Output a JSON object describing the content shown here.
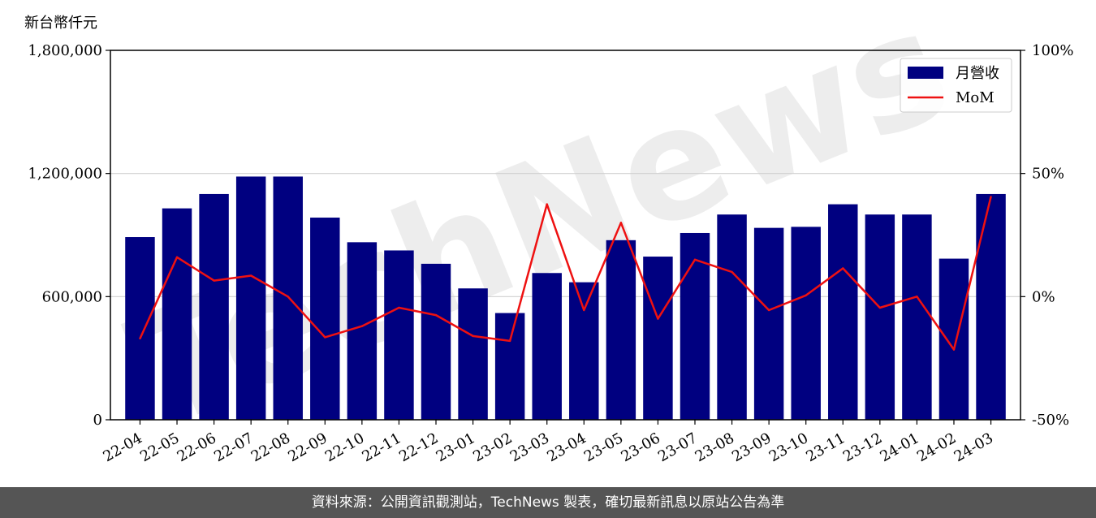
{
  "unit_label": "新台幣仟元",
  "footer_text": "資料來源：公開資訊觀測站，TechNews 製表，確切最新訊息以原站公告為準",
  "watermark_text": "TechNews",
  "colors": {
    "bar": "#000080",
    "line": "#ee1111",
    "grid": "#d0d0d0",
    "footer_bg": "#555555"
  },
  "chart_data": {
    "type": "bar",
    "categories": [
      "22-04",
      "22-05",
      "22-06",
      "22-07",
      "22-08",
      "22-09",
      "22-10",
      "22-11",
      "22-12",
      "23-01",
      "23-02",
      "23-03",
      "23-04",
      "23-05",
      "23-06",
      "23-07",
      "23-08",
      "23-09",
      "23-10",
      "23-11",
      "23-12",
      "24-01",
      "24-02",
      "24-03"
    ],
    "series": [
      {
        "name": "月營收",
        "type": "bar",
        "axis": "left",
        "values": [
          890000,
          1030000,
          1100000,
          1185000,
          1185000,
          985000,
          865000,
          825000,
          760000,
          640000,
          520000,
          715000,
          670000,
          875000,
          795000,
          910000,
          1000000,
          935000,
          940000,
          1050000,
          1000000,
          1000000,
          785000,
          1100000
        ]
      },
      {
        "name": "MoM",
        "type": "line",
        "axis": "right",
        "unit": "%",
        "values": [
          -17,
          16,
          6.5,
          8.5,
          0,
          -16.5,
          -12,
          -4.5,
          -7.5,
          -16,
          -18,
          37.5,
          -5.5,
          30,
          -9,
          15,
          10,
          -5.5,
          0.5,
          11.5,
          -4.5,
          0,
          -21.5,
          40.5
        ]
      }
    ],
    "y_left": {
      "ylim": [
        0,
        1800000
      ],
      "ticks": [
        0,
        600000,
        1200000,
        1800000
      ],
      "tick_labels": [
        "0",
        "600,000",
        "1,200,000",
        "1,800,000"
      ]
    },
    "y_right": {
      "ylim": [
        -50,
        100
      ],
      "ticks": [
        -50,
        0,
        50,
        100
      ],
      "tick_labels": [
        "-50%",
        "0%",
        "50%",
        "100%"
      ]
    },
    "grid": "horizontal",
    "legend": {
      "placement": "top-right",
      "entries": [
        "月營收",
        "MoM"
      ]
    },
    "title": "",
    "xlabel": "",
    "ylabel": ""
  }
}
